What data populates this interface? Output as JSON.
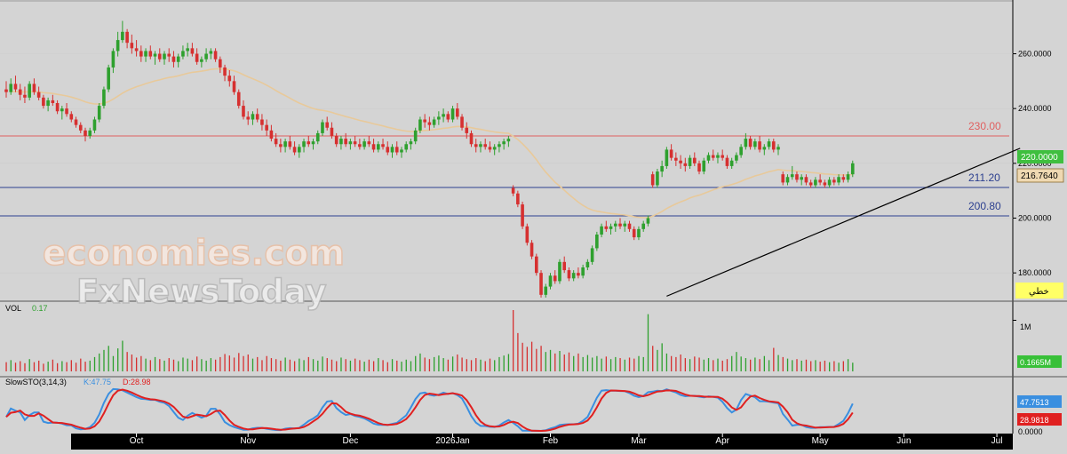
{
  "chart_data": {
    "type": "candlestick",
    "price_axis": {
      "ticks": [
        "260.0000",
        "240.0000",
        "220.0000",
        "200.0000",
        "180.0000"
      ],
      "tick_values": [
        260,
        240,
        220,
        200,
        180
      ],
      "range": [
        170,
        278
      ]
    },
    "x_axis": {
      "labels": [
        "Oct",
        "Nov",
        "Dec",
        "2026Jan",
        "Feb",
        "Mar",
        "Apr",
        "May",
        "Jun",
        "Jul"
      ],
      "label_bars": [
        28,
        52,
        74,
        96,
        117,
        136,
        154,
        175,
        193,
        213
      ]
    },
    "last_price_label": "220.0000",
    "ma_label": "216.7640",
    "lines": [
      {
        "label": "230.00",
        "value": 230,
        "color": "#e06060"
      },
      {
        "label": "211.20",
        "value": 211.2,
        "color": "#2b3f8f"
      },
      {
        "label": "200.80",
        "value": 200.8,
        "color": "#2b3f8f"
      }
    ],
    "trendline": {
      "start": [
        142,
        171.5
      ],
      "end": [
        218,
        225.5
      ],
      "color": "#000000"
    },
    "ohlc": [
      [
        0,
        247,
        250,
        244,
        246
      ],
      [
        1,
        246,
        251,
        245,
        249
      ],
      [
        2,
        249,
        252,
        246,
        247
      ],
      [
        3,
        247,
        249,
        243,
        245
      ],
      [
        4,
        245,
        248,
        242,
        244
      ],
      [
        5,
        244,
        250,
        243,
        249
      ],
      [
        6,
        249,
        251,
        245,
        246
      ],
      [
        7,
        246,
        248,
        243,
        244
      ],
      [
        8,
        244,
        245,
        240,
        241
      ],
      [
        9,
        241,
        244,
        239,
        243
      ],
      [
        10,
        243,
        245,
        241,
        242
      ],
      [
        11,
        242,
        243,
        238,
        239
      ],
      [
        12,
        239,
        241,
        236,
        240
      ],
      [
        13,
        240,
        242,
        237,
        238
      ],
      [
        14,
        238,
        239,
        235,
        236
      ],
      [
        15,
        236,
        237,
        233,
        234
      ],
      [
        16,
        234,
        235,
        231,
        232
      ],
      [
        17,
        232,
        233,
        228,
        230
      ],
      [
        18,
        230,
        233,
        229,
        232
      ],
      [
        19,
        232,
        237,
        231,
        236
      ],
      [
        20,
        236,
        242,
        235,
        241
      ],
      [
        21,
        241,
        248,
        240,
        247
      ],
      [
        22,
        247,
        256,
        246,
        255
      ],
      [
        23,
        255,
        262,
        253,
        261
      ],
      [
        24,
        261,
        268,
        259,
        265
      ],
      [
        25,
        265,
        272,
        264,
        268
      ],
      [
        26,
        268,
        269,
        262,
        264
      ],
      [
        27,
        264,
        267,
        260,
        262
      ],
      [
        28,
        262,
        265,
        259,
        261
      ],
      [
        29,
        261,
        263,
        257,
        259
      ],
      [
        30,
        259,
        262,
        257,
        261
      ],
      [
        31,
        261,
        263,
        258,
        259
      ],
      [
        32,
        259,
        261,
        256,
        260
      ],
      [
        33,
        260,
        262,
        257,
        258
      ],
      [
        34,
        258,
        261,
        256,
        260
      ],
      [
        35,
        260,
        262,
        257,
        259
      ],
      [
        36,
        259,
        261,
        255,
        257
      ],
      [
        37,
        257,
        260,
        255,
        259
      ],
      [
        38,
        259,
        263,
        258,
        261
      ],
      [
        39,
        261,
        264,
        259,
        262
      ],
      [
        40,
        262,
        264,
        259,
        260
      ],
      [
        41,
        260,
        262,
        256,
        257
      ],
      [
        42,
        257,
        259,
        255,
        258
      ],
      [
        43,
        258,
        262,
        257,
        260
      ],
      [
        44,
        260,
        262,
        258,
        261
      ],
      [
        45,
        261,
        262,
        257,
        258
      ],
      [
        46,
        258,
        259,
        253,
        255
      ],
      [
        47,
        255,
        256,
        250,
        252
      ],
      [
        48,
        252,
        254,
        248,
        250
      ],
      [
        49,
        250,
        252,
        245,
        246
      ],
      [
        50,
        246,
        247,
        240,
        241
      ],
      [
        51,
        241,
        243,
        236,
        237
      ],
      [
        52,
        237,
        239,
        234,
        236
      ],
      [
        53,
        236,
        239,
        234,
        238
      ],
      [
        54,
        238,
        240,
        235,
        236
      ],
      [
        55,
        236,
        238,
        232,
        234
      ],
      [
        56,
        234,
        236,
        230,
        232
      ],
      [
        57,
        232,
        234,
        228,
        229
      ],
      [
        58,
        229,
        231,
        226,
        227
      ],
      [
        59,
        227,
        229,
        224,
        226
      ],
      [
        60,
        226,
        229,
        224,
        228
      ],
      [
        61,
        228,
        230,
        225,
        226
      ],
      [
        62,
        226,
        228,
        223,
        224
      ],
      [
        63,
        224,
        227,
        222,
        226
      ],
      [
        64,
        226,
        229,
        224,
        228
      ],
      [
        65,
        228,
        230,
        226,
        227
      ],
      [
        66,
        227,
        229,
        225,
        228
      ],
      [
        67,
        228,
        232,
        227,
        231
      ],
      [
        68,
        231,
        236,
        230,
        235
      ],
      [
        69,
        235,
        237,
        232,
        233
      ],
      [
        70,
        233,
        235,
        229,
        230
      ],
      [
        71,
        230,
        231,
        226,
        227
      ],
      [
        72,
        227,
        230,
        225,
        229
      ],
      [
        73,
        229,
        231,
        226,
        227
      ],
      [
        74,
        227,
        229,
        225,
        228
      ],
      [
        75,
        228,
        230,
        226,
        227
      ],
      [
        76,
        227,
        229,
        225,
        226
      ],
      [
        77,
        226,
        229,
        225,
        228
      ],
      [
        78,
        228,
        230,
        226,
        227
      ],
      [
        79,
        227,
        229,
        224,
        225
      ],
      [
        80,
        225,
        228,
        224,
        227
      ],
      [
        81,
        227,
        229,
        225,
        226
      ],
      [
        82,
        226,
        228,
        223,
        224
      ],
      [
        83,
        224,
        227,
        222,
        226
      ],
      [
        84,
        226,
        228,
        223,
        224
      ],
      [
        85,
        224,
        226,
        222,
        225
      ],
      [
        86,
        225,
        228,
        224,
        227
      ],
      [
        87,
        227,
        229,
        225,
        228
      ],
      [
        88,
        228,
        233,
        227,
        232
      ],
      [
        89,
        232,
        237,
        231,
        236
      ],
      [
        90,
        236,
        238,
        233,
        235
      ],
      [
        91,
        235,
        237,
        232,
        234
      ],
      [
        92,
        234,
        237,
        233,
        236
      ],
      [
        93,
        236,
        239,
        234,
        237
      ],
      [
        94,
        237,
        240,
        235,
        238
      ],
      [
        95,
        238,
        239,
        235,
        236
      ],
      [
        96,
        236,
        241,
        235,
        240
      ],
      [
        97,
        240,
        242,
        236,
        237
      ],
      [
        98,
        237,
        238,
        232,
        233
      ],
      [
        99,
        233,
        235,
        229,
        231
      ],
      [
        100,
        231,
        232,
        226,
        227
      ],
      [
        101,
        227,
        229,
        224,
        226
      ],
      [
        102,
        226,
        228,
        224,
        227
      ],
      [
        103,
        227,
        229,
        225,
        226
      ],
      [
        104,
        226,
        228,
        224,
        225
      ],
      [
        105,
        225,
        227,
        223,
        226
      ],
      [
        106,
        226,
        228,
        224,
        227
      ],
      [
        107,
        227,
        229,
        225,
        228
      ],
      [
        108,
        228,
        230,
        226,
        229
      ],
      [
        109,
        211,
        212,
        208,
        209
      ],
      [
        110,
        209,
        210,
        204,
        205
      ],
      [
        111,
        205,
        206,
        196,
        197
      ],
      [
        112,
        197,
        198,
        190,
        191
      ],
      [
        113,
        191,
        192,
        185,
        186
      ],
      [
        114,
        186,
        187,
        179,
        180
      ],
      [
        115,
        180,
        181,
        171,
        172
      ],
      [
        116,
        172,
        176,
        171,
        175
      ],
      [
        117,
        175,
        180,
        174,
        179
      ],
      [
        118,
        179,
        181,
        176,
        177
      ],
      [
        119,
        177,
        185,
        176,
        184
      ],
      [
        120,
        184,
        186,
        180,
        181
      ],
      [
        121,
        181,
        182,
        177,
        178
      ],
      [
        122,
        178,
        181,
        177,
        180
      ],
      [
        123,
        180,
        182,
        178,
        179
      ],
      [
        124,
        179,
        183,
        178,
        182
      ],
      [
        125,
        182,
        185,
        181,
        184
      ],
      [
        126,
        184,
        190,
        183,
        189
      ],
      [
        127,
        189,
        195,
        188,
        194
      ],
      [
        128,
        194,
        198,
        193,
        197
      ],
      [
        129,
        197,
        199,
        195,
        196
      ],
      [
        130,
        196,
        198,
        194,
        197
      ],
      [
        131,
        197,
        199,
        195,
        198
      ],
      [
        132,
        198,
        200,
        196,
        197
      ],
      [
        133,
        197,
        199,
        195,
        198
      ],
      [
        134,
        198,
        199,
        195,
        196
      ],
      [
        135,
        196,
        197,
        192,
        193
      ],
      [
        136,
        193,
        197,
        192,
        196
      ],
      [
        137,
        196,
        199,
        195,
        198
      ],
      [
        138,
        198,
        201,
        197,
        200
      ],
      [
        139,
        216,
        217,
        211,
        212
      ],
      [
        140,
        212,
        218,
        211,
        217
      ],
      [
        141,
        217,
        221,
        215,
        219
      ],
      [
        142,
        219,
        226,
        218,
        225
      ],
      [
        143,
        225,
        227,
        221,
        222
      ],
      [
        144,
        222,
        224,
        219,
        221
      ],
      [
        145,
        221,
        223,
        218,
        220
      ],
      [
        146,
        220,
        222,
        217,
        219
      ],
      [
        147,
        219,
        223,
        218,
        222
      ],
      [
        148,
        222,
        224,
        219,
        220
      ],
      [
        149,
        220,
        221,
        216,
        217
      ],
      [
        150,
        217,
        222,
        216,
        221
      ],
      [
        151,
        221,
        224,
        220,
        223
      ],
      [
        152,
        223,
        225,
        221,
        222
      ],
      [
        153,
        222,
        224,
        220,
        223
      ],
      [
        154,
        223,
        225,
        221,
        222
      ],
      [
        155,
        222,
        223,
        218,
        219
      ],
      [
        156,
        219,
        222,
        218,
        221
      ],
      [
        157,
        221,
        224,
        220,
        223
      ],
      [
        158,
        223,
        227,
        222,
        226
      ],
      [
        159,
        226,
        231,
        225,
        229
      ],
      [
        160,
        229,
        230,
        225,
        226
      ],
      [
        161,
        226,
        229,
        225,
        228
      ],
      [
        162,
        228,
        230,
        224,
        225
      ],
      [
        163,
        225,
        227,
        223,
        226
      ],
      [
        164,
        226,
        229,
        225,
        228
      ],
      [
        165,
        228,
        229,
        224,
        225
      ],
      [
        166,
        225,
        227,
        223,
        226
      ],
      [
        167,
        216,
        217,
        212,
        213
      ],
      [
        168,
        213,
        216,
        212,
        215
      ],
      [
        169,
        215,
        219,
        214,
        216
      ],
      [
        170,
        216,
        217,
        213,
        214
      ],
      [
        171,
        214,
        216,
        212,
        215
      ],
      [
        172,
        215,
        216,
        212,
        213
      ],
      [
        173,
        213,
        214,
        211,
        212
      ],
      [
        174,
        212,
        215,
        211,
        214
      ],
      [
        175,
        214,
        216,
        212,
        213
      ],
      [
        176,
        213,
        214,
        211,
        212
      ],
      [
        177,
        212,
        215,
        211,
        214
      ],
      [
        178,
        214,
        215,
        212,
        213
      ],
      [
        179,
        213,
        216,
        212,
        215
      ],
      [
        180,
        215,
        216,
        213,
        214
      ],
      [
        181,
        214,
        217,
        213,
        216
      ],
      [
        182,
        216,
        221,
        215,
        220
      ]
    ],
    "volume": {
      "label": "VOL",
      "value_label": "0.17",
      "axis_label": "1M",
      "last_label": "0.1665M",
      "max": 1.2,
      "values": [
        0.18,
        0.22,
        0.17,
        0.2,
        0.16,
        0.24,
        0.18,
        0.21,
        0.15,
        0.19,
        0.23,
        0.16,
        0.2,
        0.18,
        0.22,
        0.17,
        0.25,
        0.19,
        0.21,
        0.28,
        0.35,
        0.42,
        0.5,
        0.3,
        0.45,
        0.6,
        0.38,
        0.33,
        0.27,
        0.3,
        0.25,
        0.22,
        0.28,
        0.24,
        0.21,
        0.26,
        0.23,
        0.2,
        0.27,
        0.25,
        0.22,
        0.29,
        0.24,
        0.21,
        0.26,
        0.23,
        0.28,
        0.34,
        0.31,
        0.27,
        0.36,
        0.3,
        0.33,
        0.25,
        0.28,
        0.22,
        0.3,
        0.26,
        0.24,
        0.21,
        0.27,
        0.23,
        0.2,
        0.25,
        0.22,
        0.28,
        0.24,
        0.21,
        0.29,
        0.26,
        0.23,
        0.2,
        0.27,
        0.24,
        0.21,
        0.25,
        0.22,
        0.19,
        0.23,
        0.2,
        0.26,
        0.22,
        0.18,
        0.24,
        0.21,
        0.19,
        0.23,
        0.2,
        0.3,
        0.35,
        0.27,
        0.24,
        0.28,
        0.31,
        0.26,
        0.23,
        0.29,
        0.33,
        0.27,
        0.24,
        0.22,
        0.26,
        0.23,
        0.2,
        0.25,
        0.22,
        0.28,
        0.31,
        0.34,
        1.52,
        0.75,
        0.56,
        0.48,
        0.58,
        0.44,
        0.5,
        0.38,
        0.42,
        0.35,
        0.4,
        0.33,
        0.37,
        0.3,
        0.35,
        0.28,
        0.32,
        0.27,
        0.3,
        0.25,
        0.29,
        0.24,
        0.28,
        0.26,
        0.23,
        0.27,
        0.25,
        0.3,
        0.28,
        1.12,
        0.5,
        0.42,
        0.55,
        0.35,
        0.3,
        0.28,
        0.33,
        0.26,
        0.24,
        0.29,
        0.27,
        0.23,
        0.26,
        0.22,
        0.25,
        0.21,
        0.24,
        0.3,
        0.38,
        0.29,
        0.26,
        0.23,
        0.27,
        0.24,
        0.3,
        0.22,
        0.46,
        0.32,
        0.28,
        0.25,
        0.22,
        0.24,
        0.21,
        0.23,
        0.2,
        0.22,
        0.19,
        0.21,
        0.18,
        0.2,
        0.17,
        0.2,
        0.24,
        0.17
      ]
    },
    "stochastic": {
      "label": "SlowSTO(3,14,3)",
      "k_label": "K:47.75",
      "d_label": "D:28.98",
      "k_last": "47.7513",
      "d_last": "28.9818",
      "zero_label": "0.0000",
      "k_color": "#3a8fe0",
      "d_color": "#e02020"
    },
    "legend_tag": "خطي",
    "watermark": [
      "economies.com",
      "FxNewsToday"
    ]
  }
}
